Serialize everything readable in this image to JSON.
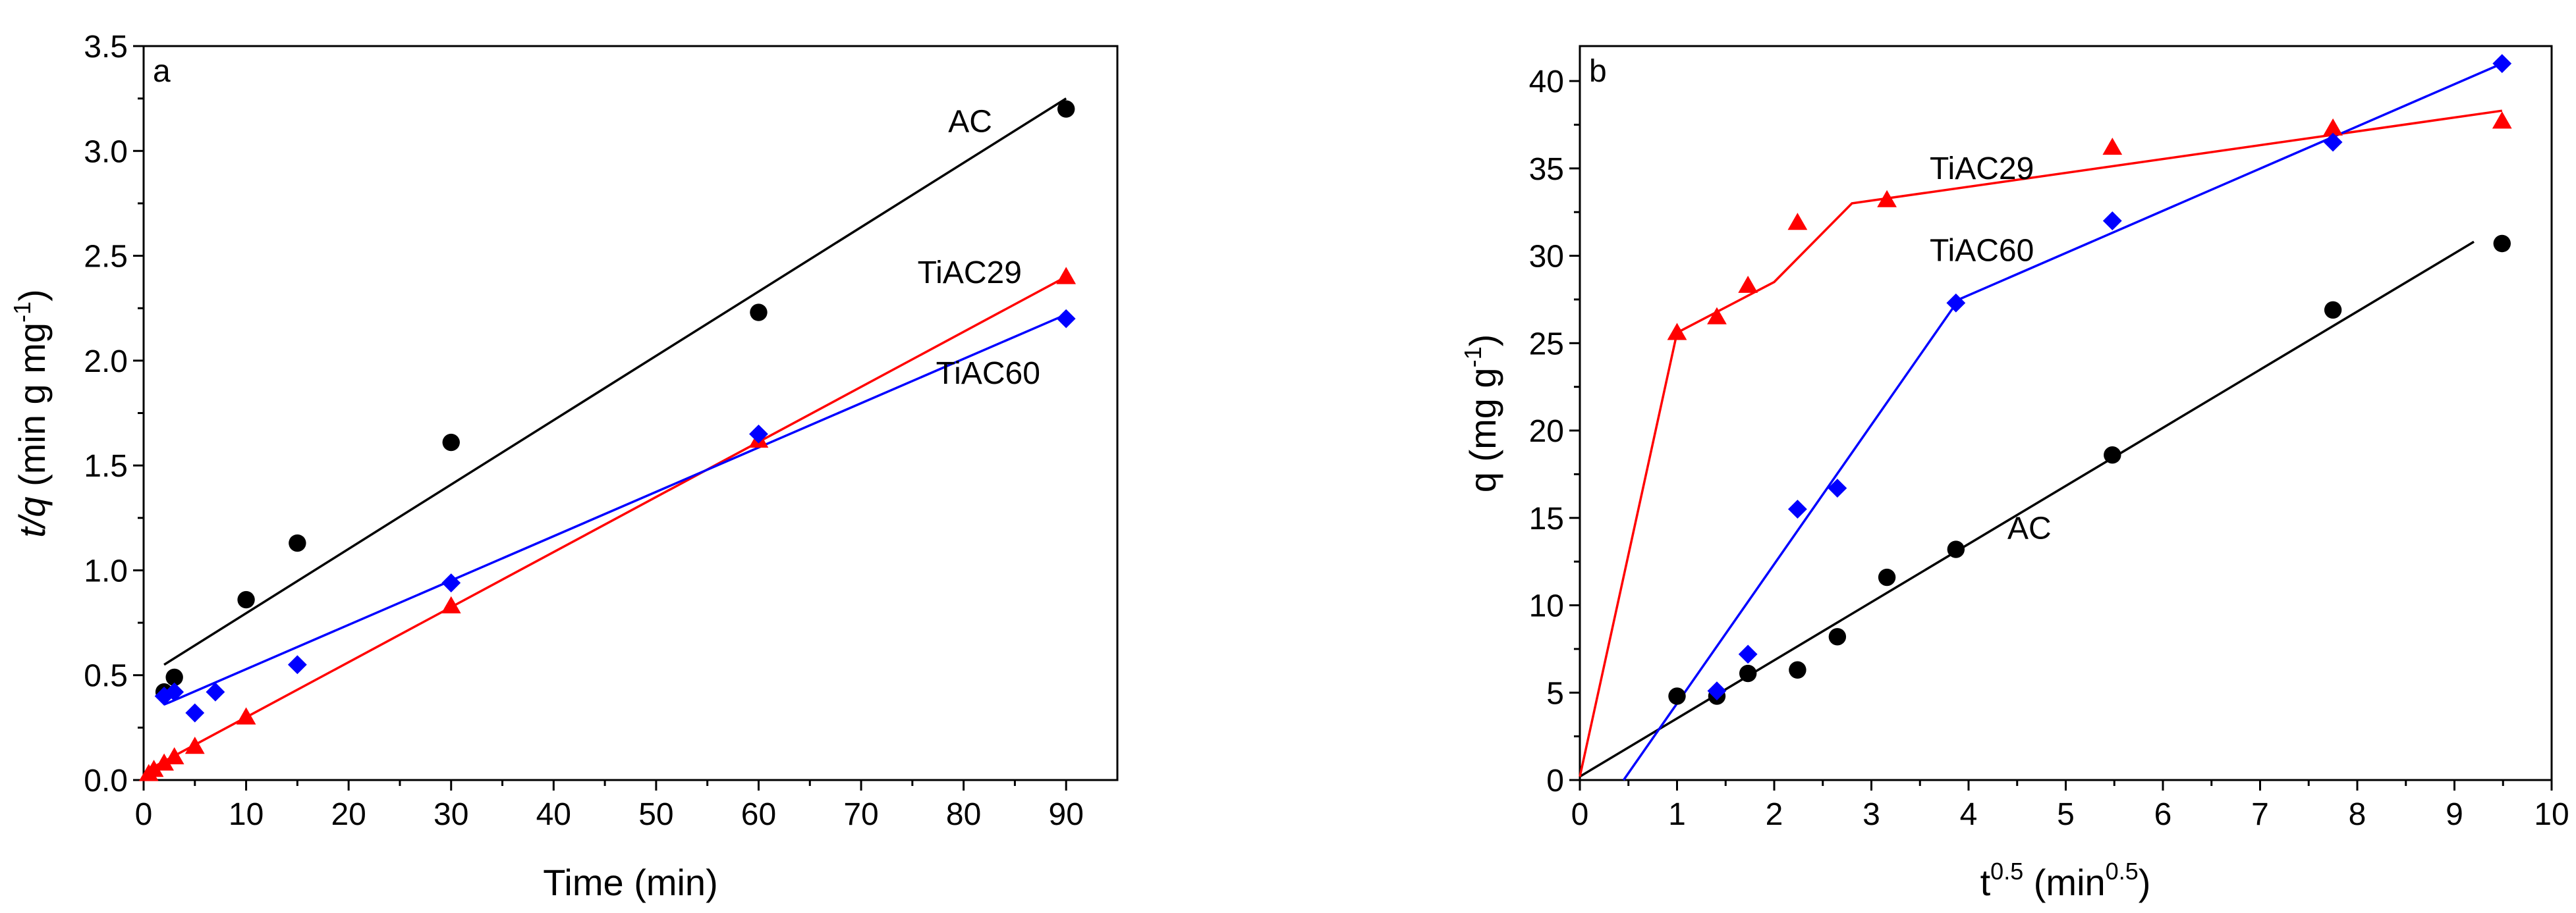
{
  "colors": {
    "AC": "#000000",
    "TiAC29": "#ff0000",
    "TiAC60": "#0000ff"
  },
  "chart_data": [
    {
      "type": "scatter",
      "panel": "a",
      "xlabel": "Time (min)",
      "ylabel": {
        "parts": [
          "t/q",
          " (min g mg",
          "-1",
          ")"
        ]
      },
      "xlim": [
        0,
        95
      ],
      "ylim": [
        0,
        3.5
      ],
      "xticks": [
        0,
        10,
        20,
        30,
        40,
        50,
        60,
        70,
        80,
        90
      ],
      "yticks": [
        0.0,
        0.5,
        1.0,
        1.5,
        2.0,
        2.5,
        3.0,
        3.5
      ],
      "ytick_labels": [
        "0.0",
        "0.5",
        "1.0",
        "1.5",
        "2.0",
        "2.5",
        "3.0",
        "3.5"
      ],
      "series": [
        {
          "name": "AC",
          "marker": "circle",
          "x": [
            2,
            3,
            10,
            15,
            30,
            60,
            90
          ],
          "y": [
            0.42,
            0.49,
            0.86,
            1.13,
            1.61,
            2.23,
            3.2
          ],
          "fit": [
            [
              2,
              0.55
            ],
            [
              90,
              3.25
            ]
          ],
          "label": "AC",
          "label_at": [
            78.5,
            3.09
          ]
        },
        {
          "name": "TiAC29",
          "marker": "triangle",
          "x": [
            0.5,
            1,
            2,
            3,
            5,
            10,
            30,
            60,
            90
          ],
          "y": [
            0.03,
            0.05,
            0.08,
            0.11,
            0.16,
            0.3,
            0.83,
            1.62,
            2.4
          ],
          "fit": [
            [
              0.5,
              0.05
            ],
            [
              90,
              2.4
            ]
          ],
          "label": "TiAC29",
          "label_at": [
            75.5,
            2.37
          ]
        },
        {
          "name": "TiAC60",
          "marker": "diamond",
          "x": [
            2,
            3,
            5,
            7,
            15,
            30,
            60,
            90
          ],
          "y": [
            0.4,
            0.42,
            0.32,
            0.42,
            0.55,
            0.94,
            1.65,
            2.2
          ],
          "fit": [
            [
              2,
              0.36
            ],
            [
              2.5,
              0.37
            ],
            [
              90,
              2.22
            ]
          ],
          "label": "TiAC60",
          "label_at": [
            77.3,
            1.89
          ]
        }
      ]
    },
    {
      "type": "scatter",
      "panel": "b",
      "xlabel": {
        "parts": [
          "t",
          "0.5",
          " (min",
          "0.5",
          ")"
        ]
      },
      "ylabel": {
        "parts": [
          "q (mg g",
          "-1",
          ")"
        ]
      },
      "xlim": [
        0,
        10
      ],
      "ylim": [
        0,
        42
      ],
      "xticks": [
        0,
        1,
        2,
        3,
        4,
        5,
        6,
        7,
        8,
        9,
        10
      ],
      "yticks": [
        0,
        5,
        10,
        15,
        20,
        25,
        30,
        35,
        40
      ],
      "ytick_labels": [
        "0",
        "5",
        "10",
        "15",
        "20",
        "25",
        "30",
        "35",
        "40"
      ],
      "series": [
        {
          "name": "AC",
          "marker": "circle",
          "x": [
            1.0,
            1.41,
            1.73,
            2.24,
            2.65,
            3.16,
            3.87,
            5.48,
            7.75,
            9.49
          ],
          "y": [
            4.8,
            4.8,
            6.1,
            6.3,
            8.2,
            11.6,
            13.2,
            18.6,
            26.9,
            30.7
          ],
          "fit": [
            [
              0,
              0.2
            ],
            [
              9.2,
              30.8
            ]
          ],
          "label": "AC",
          "label_at": [
            4.4,
            13.8
          ]
        },
        {
          "name": "TiAC29",
          "marker": "triangle",
          "x": [
            1.0,
            1.41,
            1.73,
            2.24,
            3.16,
            5.48,
            7.75,
            9.49
          ],
          "y": [
            25.6,
            26.5,
            28.3,
            31.9,
            33.2,
            36.2,
            37.3,
            37.7
          ],
          "fit": [
            [
              0,
              0.2
            ],
            [
              1.0,
              25.6
            ],
            [
              2.0,
              28.5
            ],
            [
              2.8,
              33.0
            ],
            [
              9.49,
              38.3
            ]
          ],
          "label": "TiAC29",
          "label_at": [
            3.6,
            34.4
          ]
        },
        {
          "name": "TiAC60",
          "marker": "diamond",
          "x": [
            1.41,
            1.73,
            2.24,
            2.65,
            3.87,
            5.48,
            7.75,
            9.49
          ],
          "y": [
            5.1,
            7.2,
            15.5,
            16.7,
            27.3,
            32.0,
            36.5,
            41.0
          ],
          "fit": [
            [
              0.45,
              0
            ],
            [
              3.9,
              27.5
            ],
            [
              9.49,
              41.0
            ]
          ],
          "label": "TiAC60",
          "label_at": [
            3.6,
            29.7
          ]
        }
      ]
    }
  ]
}
